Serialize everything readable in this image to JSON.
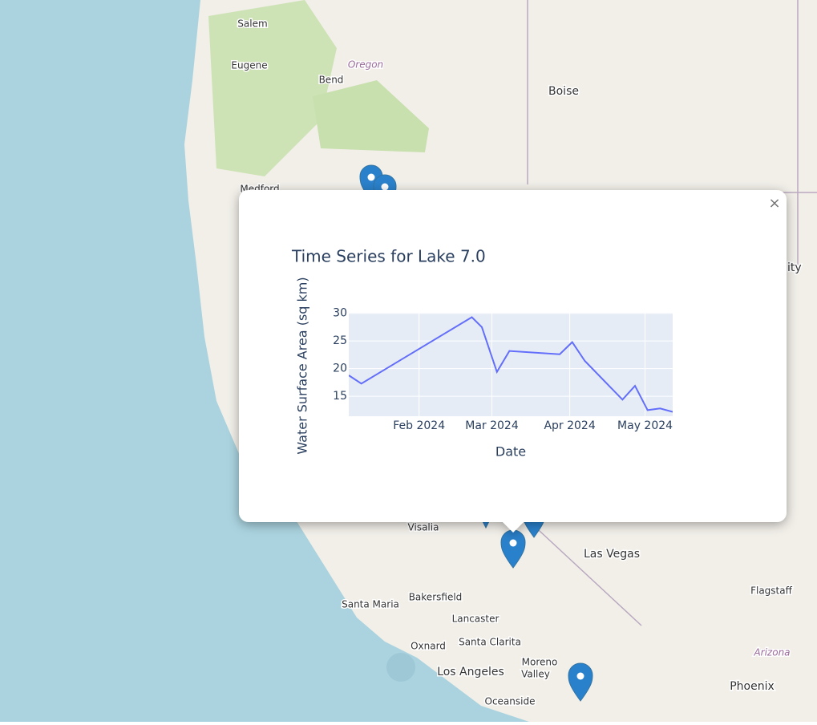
{
  "map": {
    "labels": [
      "Salem",
      "Eugene",
      "Oregon",
      "Bend",
      "Boise",
      "Medford",
      "ity",
      "Visalia",
      "Las Vegas",
      "Bakersfield",
      "Santa Maria",
      "Lancaster",
      "Flagstaff",
      "Oxnard",
      "Santa Clarita",
      "Los Angeles",
      "Moreno",
      "Valley",
      "Arizona",
      "Phoenix",
      "Oceanside"
    ]
  },
  "popup": {
    "close": "×"
  },
  "chart_data": {
    "type": "line",
    "title": "Time Series for Lake 7.0",
    "x_label": "Date",
    "y_label": "Water Surface Area (sq km)",
    "x": [
      "2024-01-04",
      "2024-01-09",
      "2024-02-22",
      "2024-02-26",
      "2024-03-03",
      "2024-03-08",
      "2024-03-28",
      "2024-04-02",
      "2024-04-07",
      "2024-04-22",
      "2024-04-27",
      "2024-05-02",
      "2024-05-07",
      "2024-05-12"
    ],
    "values": [
      18.8,
      17.3,
      29.3,
      27.5,
      19.4,
      23.2,
      22.6,
      24.8,
      21.4,
      14.4,
      16.9,
      12.5,
      12.8,
      12.2
    ],
    "color": "#636efa",
    "xlim": [
      "2024-01-04",
      "2024-05-12"
    ],
    "xticks": [
      {
        "value": "2024-02-01",
        "label": "Feb 2024"
      },
      {
        "value": "2024-03-01",
        "label": "Mar 2024"
      },
      {
        "value": "2024-04-01",
        "label": "Apr 2024"
      },
      {
        "value": "2024-05-01",
        "label": "May 2024"
      }
    ],
    "ylim": [
      11.4,
      30.1
    ],
    "yticks": [
      15,
      20,
      25,
      30
    ],
    "grid": true
  }
}
